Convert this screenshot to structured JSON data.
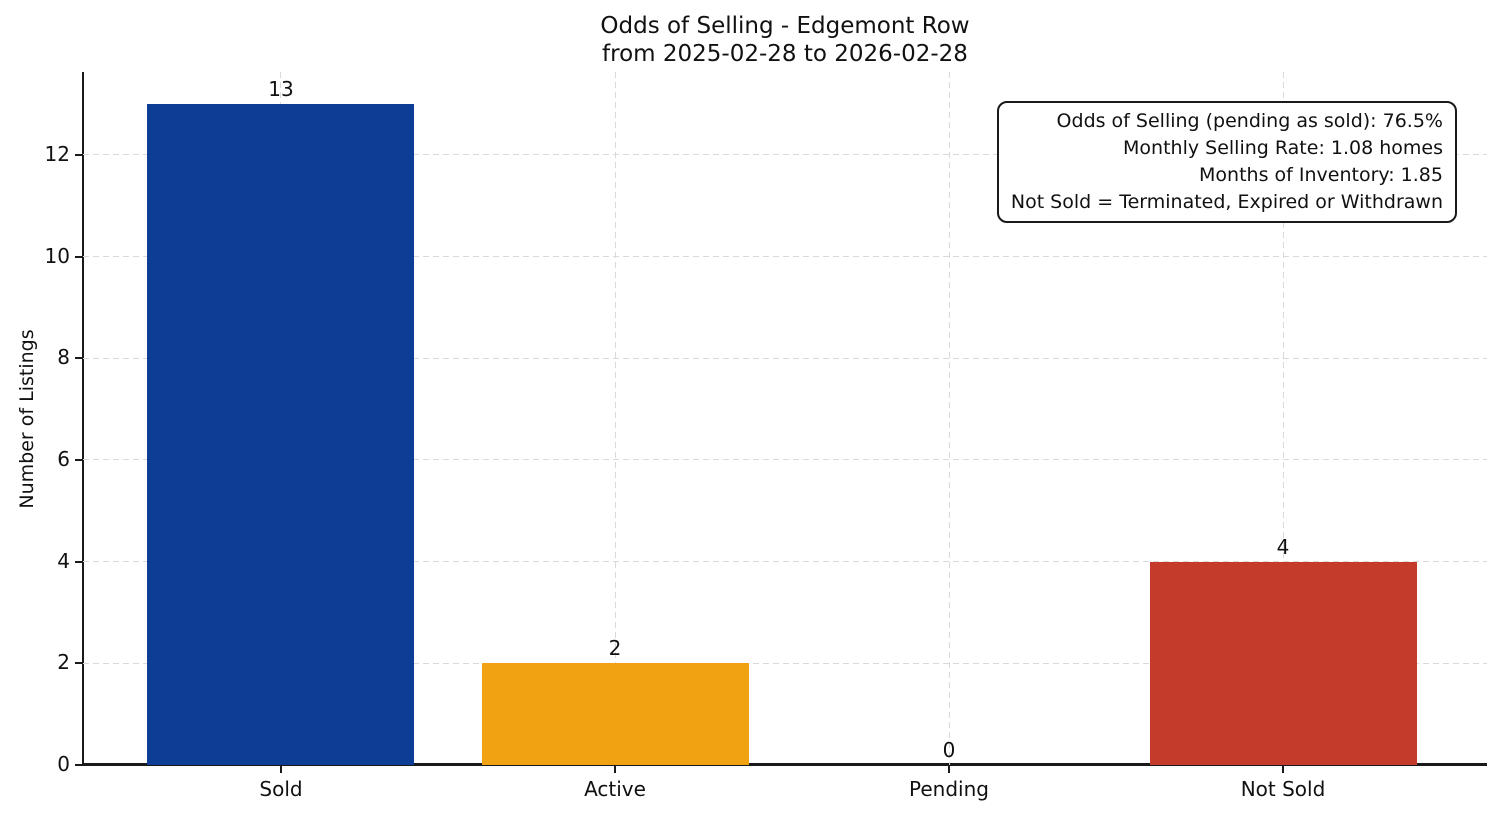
{
  "title": {
    "line1": "Odds of Selling - Edgemont Row",
    "line2": "from 2025-02-28 to 2026-02-28"
  },
  "annotation": {
    "lines": [
      "Odds of Selling (pending as sold): 76.5%",
      "Monthly Selling Rate: 1.08 homes",
      "Months of Inventory: 1.85",
      "Not Sold = Terminated, Expired or Withdrawn"
    ]
  },
  "chart_data": {
    "type": "bar",
    "title": "Odds of Selling - Edgemont Row\nfrom 2025-02-28 to 2026-02-28",
    "categories": [
      "Sold",
      "Active",
      "Pending",
      "Not Sold"
    ],
    "values": [
      13,
      2,
      0,
      4
    ],
    "bar_colors": [
      "#0d3e96",
      "#f1a213",
      null,
      "#c43a2b"
    ],
    "xlabel": "",
    "ylabel": "Number of Listings",
    "ylim": [
      0,
      13.63
    ],
    "yticks": [
      0,
      2,
      4,
      6,
      8,
      10,
      12
    ],
    "grid": true,
    "grid_style": "dashed",
    "legend": "none",
    "annotation_lines": [
      "Odds of Selling (pending as sold): 76.5%",
      "Monthly Selling Rate: 1.08 homes",
      "Months of Inventory: 1.85",
      "Not Sold = Terminated, Expired or Withdrawn"
    ]
  }
}
